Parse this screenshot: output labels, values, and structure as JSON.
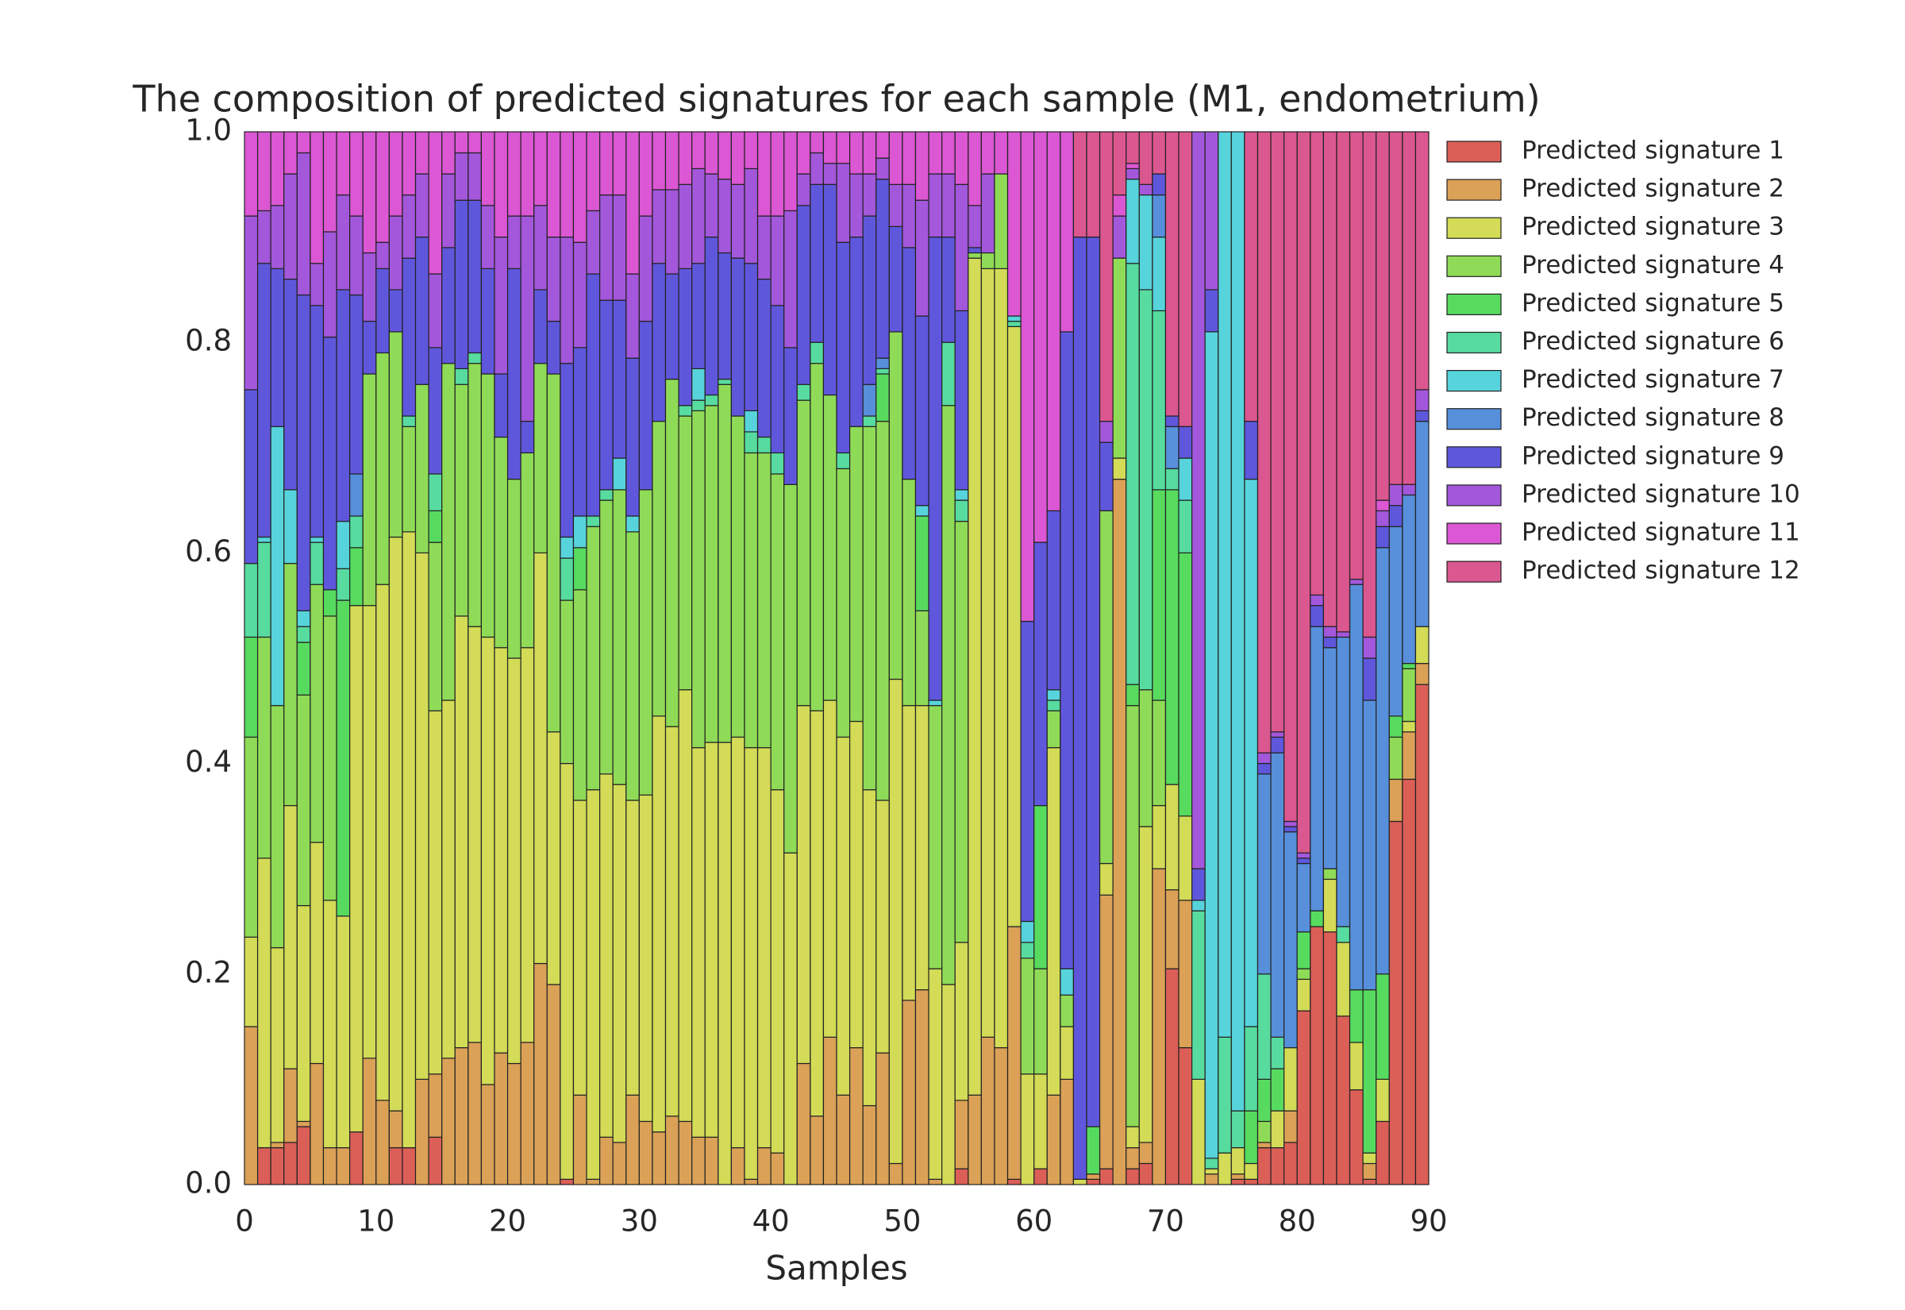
{
  "chart_data": {
    "type": "stacked_bar",
    "title": "The composition of predicted signatures for each sample (M1, endometrium)",
    "xlabel": "Samples",
    "xlim": [
      0,
      90
    ],
    "xticks": [
      0,
      10,
      20,
      30,
      40,
      50,
      60,
      70,
      80,
      90
    ],
    "ylim": [
      0,
      1
    ],
    "yticks": [
      {
        "value": 0,
        "label": "0.0"
      },
      0.2,
      0.4,
      0.6,
      0.8,
      {
        "value": 1,
        "label": "1.0"
      }
    ],
    "grid": false,
    "legend": "right",
    "x": [
      0,
      1,
      2,
      3,
      4,
      5,
      6,
      7,
      8,
      9,
      10,
      11,
      12,
      13,
      14,
      15,
      16,
      17,
      18,
      19,
      20,
      21,
      22,
      23,
      24,
      25,
      26,
      27,
      28,
      29,
      30,
      31,
      32,
      33,
      34,
      35,
      36,
      37,
      38,
      39,
      40,
      41,
      42,
      43,
      44,
      45,
      46,
      47,
      48,
      49,
      50,
      51,
      52,
      53,
      54,
      55,
      56,
      57,
      58,
      59,
      60,
      61,
      62,
      63,
      64,
      65,
      66,
      67,
      68,
      69,
      70,
      71,
      72,
      73,
      74,
      75,
      76,
      77,
      78,
      79,
      80,
      81,
      82,
      83,
      84,
      85,
      86,
      87,
      88,
      89
    ],
    "series": [
      {
        "name": "Predicted signature 1",
        "color": "#db5f57",
        "values": [
          0,
          0.035,
          0.035,
          0.04,
          0.055,
          0,
          0,
          0,
          0.05,
          0,
          0,
          0.035,
          0.035,
          0,
          0.045,
          0,
          0,
          0,
          0,
          0,
          0,
          0,
          0,
          0,
          0.005,
          0,
          0,
          0,
          0,
          0,
          0,
          0,
          0,
          0,
          0,
          0,
          0,
          0,
          0,
          0,
          0,
          0,
          0,
          0,
          0,
          0,
          0,
          0,
          0,
          0,
          0,
          0,
          0,
          0,
          0.015,
          0,
          0,
          0,
          0.005,
          0,
          0.015,
          0,
          0,
          0,
          0.005,
          0.015,
          0,
          0.015,
          0.02,
          0,
          0.205,
          0.13,
          0,
          0,
          0,
          0.005,
          0.005,
          0.035,
          0.035,
          0.04,
          0.165,
          0.245,
          0.24,
          0.16,
          0.09,
          0.005,
          0.06,
          0.345,
          0.385,
          0.475
        ]
      },
      {
        "name": "Predicted signature 2",
        "color": "#dba157",
        "values": [
          0.15,
          0,
          0.005,
          0.07,
          0.005,
          0.115,
          0.035,
          0.035,
          0,
          0.12,
          0.08,
          0.035,
          0,
          0.1,
          0.06,
          0.12,
          0.13,
          0.135,
          0.095,
          0.125,
          0.115,
          0.135,
          0.21,
          0.19,
          0,
          0.085,
          0.005,
          0.045,
          0.04,
          0.085,
          0.06,
          0.05,
          0.065,
          0.06,
          0.045,
          0.045,
          0,
          0.035,
          0.005,
          0.035,
          0.03,
          0,
          0.115,
          0.065,
          0.14,
          0.085,
          0.13,
          0.075,
          0.125,
          0.02,
          0.175,
          0.185,
          0.005,
          0,
          0.065,
          0.085,
          0.14,
          0.13,
          0.24,
          0,
          0,
          0.085,
          0.1,
          0,
          0.005,
          0.26,
          0.67,
          0.02,
          0.02,
          0.3,
          0.075,
          0.14,
          0,
          0.01,
          0,
          0.005,
          0,
          0.005,
          0,
          0.03,
          0,
          0,
          0,
          0,
          0,
          0.015,
          0,
          0.04,
          0.045,
          0.02
        ]
      },
      {
        "name": "Predicted signature 3",
        "color": "#d3db57",
        "values": [
          0.085,
          0.275,
          0.185,
          0.25,
          0.205,
          0.21,
          0.235,
          0.22,
          0.5,
          0.43,
          0.49,
          0.545,
          0.585,
          0.5,
          0.345,
          0.34,
          0.41,
          0.395,
          0.425,
          0.385,
          0.385,
          0.375,
          0.39,
          0.24,
          0.395,
          0.28,
          0.37,
          0.345,
          0.34,
          0.28,
          0.31,
          0.395,
          0.37,
          0.41,
          0.37,
          0.375,
          0.42,
          0.39,
          0.41,
          0.38,
          0.345,
          0.315,
          0.34,
          0.385,
          0.32,
          0.34,
          0.31,
          0.3,
          0.24,
          0.46,
          0.28,
          0.27,
          0.2,
          0.19,
          0.15,
          0.795,
          0.73,
          0.74,
          0.57,
          0.105,
          0.09,
          0.33,
          0.05,
          0.005,
          0,
          0.03,
          0.02,
          0.02,
          0.3,
          0.06,
          0.1,
          0.08,
          0.1,
          0.005,
          0.03,
          0.025,
          0.015,
          0,
          0.035,
          0.06,
          0.03,
          0,
          0.05,
          0.07,
          0.045,
          0.01,
          0.04,
          0,
          0.01,
          0.035
        ]
      },
      {
        "name": "Predicted signature 4",
        "color": "#8fdb57",
        "values": [
          0.19,
          0.21,
          0.23,
          0.23,
          0.2,
          0.245,
          0.27,
          0,
          0,
          0.22,
          0.22,
          0.195,
          0.1,
          0.16,
          0.16,
          0.32,
          0.22,
          0.25,
          0.25,
          0.2,
          0.17,
          0.185,
          0.18,
          0.34,
          0.155,
          0.2,
          0.25,
          0.26,
          0.28,
          0.255,
          0.29,
          0.28,
          0.33,
          0.26,
          0.32,
          0.32,
          0.34,
          0.305,
          0.28,
          0.28,
          0.3,
          0.35,
          0.29,
          0.33,
          0.29,
          0.255,
          0.28,
          0.345,
          0.36,
          0.33,
          0.215,
          0.09,
          0.25,
          0.55,
          0.4,
          0.005,
          0.015,
          0.09,
          0,
          0.11,
          0.1,
          0.035,
          0.03,
          0,
          0,
          0.335,
          0.19,
          0.4,
          0.13,
          0.1,
          0,
          0,
          0,
          0,
          0,
          0,
          0,
          0.02,
          0,
          0,
          0.01,
          0,
          0.01,
          0,
          0,
          0,
          0,
          0.04,
          0.05,
          0
        ]
      },
      {
        "name": "Predicted signature 5",
        "color": "#57db5f",
        "values": [
          0.095,
          0,
          0,
          0,
          0.05,
          0,
          0.025,
          0.3,
          0.055,
          0,
          0,
          0,
          0,
          0,
          0.03,
          0,
          0,
          0,
          0,
          0,
          0,
          0,
          0,
          0,
          0,
          0.04,
          0,
          0,
          0,
          0,
          0,
          0,
          0,
          0,
          0,
          0,
          0,
          0,
          0,
          0,
          0,
          0,
          0,
          0,
          0,
          0,
          0,
          0,
          0.045,
          0,
          0,
          0.09,
          0,
          0,
          0,
          0,
          0,
          0,
          0,
          0,
          0.155,
          0,
          0,
          0,
          0.045,
          0,
          0,
          0.02,
          0,
          0.2,
          0.28,
          0.25,
          0,
          0,
          0,
          0,
          0.05,
          0.04,
          0.04,
          0,
          0.035,
          0.015,
          0,
          0,
          0.05,
          0.155,
          0.1,
          0.02,
          0.005,
          0
        ]
      },
      {
        "name": "Predicted signature 6",
        "color": "#57db9f",
        "values": [
          0.07,
          0.09,
          0,
          0,
          0.015,
          0.04,
          0,
          0.03,
          0.03,
          0,
          0,
          0,
          0.01,
          0,
          0.035,
          0,
          0.015,
          0.01,
          0,
          0,
          0,
          0,
          0,
          0,
          0.04,
          0,
          0.01,
          0.01,
          0,
          0,
          0,
          0,
          0,
          0.01,
          0.01,
          0.01,
          0.005,
          0,
          0.02,
          0.015,
          0.02,
          0,
          0.015,
          0.02,
          0,
          0.015,
          0,
          0.01,
          0.005,
          0,
          0,
          0,
          0,
          0.06,
          0.02,
          0,
          0,
          0,
          0.005,
          0.015,
          0,
          0.01,
          0,
          0,
          0,
          0,
          0,
          0.4,
          0.38,
          0.17,
          0.02,
          0.05,
          0.16,
          0.01,
          0.11,
          0.035,
          0.08,
          0.1,
          0.03,
          0,
          0,
          0,
          0,
          0.015,
          0,
          0,
          0,
          0,
          0,
          0
        ]
      },
      {
        "name": "Predicted signature 7",
        "color": "#57d3db",
        "values": [
          0,
          0.005,
          0.265,
          0.07,
          0.015,
          0.005,
          0,
          0.045,
          0,
          0,
          0,
          0,
          0,
          0,
          0,
          0,
          0,
          0,
          0,
          0,
          0,
          0,
          0,
          0,
          0.02,
          0.03,
          0,
          0,
          0.03,
          0.015,
          0,
          0,
          0,
          0,
          0.03,
          0,
          0,
          0,
          0.02,
          0,
          0,
          0,
          0,
          0,
          0,
          0,
          0,
          0,
          0,
          0,
          0,
          0.01,
          0.005,
          0,
          0.01,
          0,
          0,
          0,
          0.005,
          0.02,
          0,
          0.01,
          0.025,
          0,
          0,
          0,
          0,
          0.08,
          0.09,
          0.07,
          0,
          0.04,
          0.01,
          0.785,
          0.86,
          0.93,
          0.52,
          0,
          0,
          0,
          0,
          0,
          0,
          0,
          0,
          0,
          0,
          0,
          0,
          0
        ]
      },
      {
        "name": "Predicted signature 8",
        "color": "#578fdb",
        "values": [
          0,
          0,
          0,
          0,
          0,
          0,
          0,
          0,
          0.04,
          0,
          0,
          0,
          0,
          0,
          0,
          0,
          0,
          0,
          0,
          0,
          0,
          0,
          0,
          0,
          0,
          0,
          0,
          0,
          0,
          0,
          0,
          0,
          0,
          0,
          0,
          0,
          0,
          0,
          0,
          0,
          0,
          0,
          0,
          0,
          0,
          0,
          0,
          0.03,
          0.01,
          0,
          0,
          0,
          0,
          0,
          0,
          0,
          0,
          0,
          0,
          0,
          0,
          0,
          0,
          0,
          0,
          0,
          0,
          0,
          0,
          0.04,
          0.04,
          0,
          0,
          0,
          0,
          0,
          0,
          0.19,
          0.27,
          0.205,
          0.065,
          0.27,
          0.21,
          0.275,
          0.385,
          0.275,
          0.405,
          0.18,
          0.16,
          0.195
        ]
      },
      {
        "name": "Predicted signature 9",
        "color": "#5f57db",
        "values": [
          0.165,
          0.26,
          0.15,
          0.2,
          0.3,
          0.22,
          0.24,
          0.22,
          0.17,
          0.05,
          0.08,
          0.04,
          0.15,
          0.14,
          0.12,
          0.11,
          0.16,
          0.145,
          0.1,
          0.06,
          0.2,
          0.03,
          0.07,
          0.05,
          0.165,
          0.16,
          0.23,
          0.18,
          0.15,
          0.15,
          0.16,
          0.15,
          0.1,
          0.13,
          0.1,
          0.15,
          0.12,
          0.15,
          0.14,
          0.15,
          0.14,
          0.13,
          0.17,
          0.15,
          0.2,
          0.2,
          0.18,
          0.16,
          0.17,
          0.1,
          0.22,
          0.18,
          0.44,
          0.1,
          0.17,
          0.005,
          0,
          0,
          0,
          0.285,
          0.25,
          0.17,
          0.605,
          0.895,
          0.845,
          0.065,
          0,
          0,
          0,
          0.02,
          0.01,
          0.03,
          0.03,
          0.04,
          0,
          0,
          0.055,
          0.01,
          0.015,
          0.005,
          0.005,
          0.02,
          0.01,
          0,
          0,
          0.04,
          0.02,
          0.02,
          0,
          0.01
        ]
      },
      {
        "name": "Predicted signature 10",
        "color": "#a357db",
        "values": [
          0.165,
          0.05,
          0.06,
          0.1,
          0.135,
          0.04,
          0.1,
          0.09,
          0.075,
          0.065,
          0.025,
          0.07,
          0.06,
          0.06,
          0.07,
          0.07,
          0.045,
          0.045,
          0.06,
          0.13,
          0.05,
          0.195,
          0.08,
          0.08,
          0.12,
          0.1,
          0.06,
          0.1,
          0.1,
          0.08,
          0.1,
          0.07,
          0.08,
          0.08,
          0.09,
          0.06,
          0.07,
          0.07,
          0.09,
          0.06,
          0.085,
          0.13,
          0.03,
          0.03,
          0.02,
          0.075,
          0.06,
          0.04,
          0.02,
          0.04,
          0.06,
          0.11,
          0.06,
          0.06,
          0.12,
          0.04,
          0.075,
          0,
          0,
          0,
          0,
          0,
          0,
          0,
          0,
          0.02,
          0.04,
          0.01,
          0.01,
          0,
          0,
          0,
          0.7,
          0.15,
          0,
          0,
          0,
          0.01,
          0.005,
          0.005,
          0.005,
          0.01,
          0.01,
          0.005,
          0.005,
          0.02,
          0.015,
          0.02,
          0.01,
          0.02
        ]
      },
      {
        "name": "Predicted signature 11",
        "color": "#db57d3",
        "values": [
          0.08,
          0.075,
          0.07,
          0.04,
          0.02,
          0.125,
          0.095,
          0.06,
          0.08,
          0.115,
          0.105,
          0.08,
          0.06,
          0.04,
          0.135,
          0.04,
          0.02,
          0.02,
          0.07,
          0.1,
          0.08,
          0.08,
          0.07,
          0.1,
          0.1,
          0.105,
          0.075,
          0.06,
          0.06,
          0.135,
          0.08,
          0.055,
          0.055,
          0.05,
          0.035,
          0.04,
          0.045,
          0.05,
          0.035,
          0.08,
          0.08,
          0.075,
          0.04,
          0.02,
          0.03,
          0.03,
          0.04,
          0.04,
          0.025,
          0.05,
          0.05,
          0.065,
          0.04,
          0.04,
          0.05,
          0.07,
          0.04,
          0.04,
          0.175,
          0.465,
          0.39,
          0.36,
          0.19,
          0,
          0,
          0,
          0.02,
          0.005,
          0,
          0,
          0,
          0,
          0,
          0,
          0,
          0,
          0,
          0,
          0,
          0,
          0,
          0,
          0,
          0,
          0,
          0,
          0.01,
          0,
          0,
          0
        ]
      },
      {
        "name": "Predicted signature 12",
        "color": "#db578f",
        "values": [
          0,
          0,
          0,
          0,
          0,
          0,
          0,
          0,
          0,
          0,
          0,
          0,
          0,
          0,
          0,
          0,
          0,
          0,
          0,
          0,
          0,
          0,
          0,
          0,
          0,
          0,
          0,
          0,
          0,
          0,
          0,
          0,
          0,
          0,
          0,
          0,
          0,
          0,
          0,
          0,
          0,
          0,
          0,
          0,
          0,
          0,
          0,
          0,
          0,
          0,
          0,
          0,
          0,
          0,
          0,
          0,
          0,
          0,
          0,
          0,
          0,
          0,
          0,
          0.1,
          0.1,
          0.275,
          0.06,
          0.03,
          0.05,
          0.04,
          0.27,
          0.28,
          0,
          0,
          0,
          0,
          0.275,
          0.59,
          0.57,
          0.655,
          0.685,
          0.44,
          0.47,
          0.475,
          0.425,
          0.48,
          0.35,
          0.335,
          0.335,
          0.245
        ]
      }
    ]
  }
}
